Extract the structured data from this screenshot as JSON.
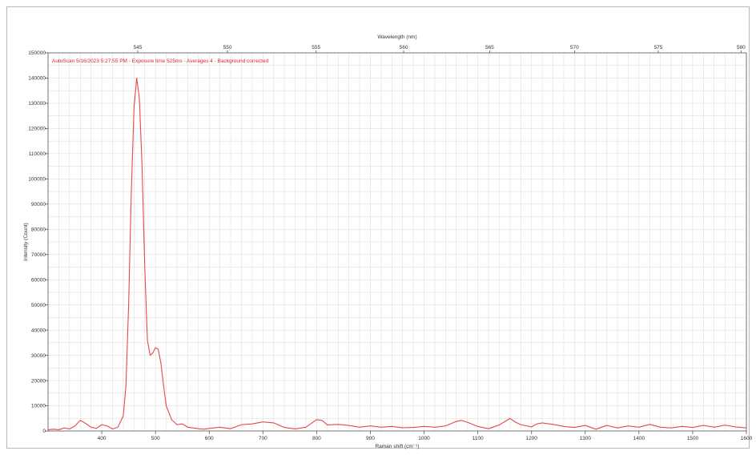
{
  "colors": {
    "series": "#e8474a",
    "grid": "#d8d8d8",
    "axis": "#555555",
    "annotation": "#e02424"
  },
  "annotation_text": "AutoScan 5/16/2023 5:27:55 PM - Exposure time 525ms - Averages 4 - Background corrected",
  "chart_data": {
    "type": "line",
    "title": "",
    "xlabel": "Raman shift (cm⁻¹)",
    "ylabel": "Intensity (Count)",
    "x2label": "Wavelength (nm)",
    "xlim": [
      300,
      1600
    ],
    "ylim": [
      0,
      150000
    ],
    "x_ticks": [
      400,
      500,
      600,
      700,
      800,
      900,
      1000,
      1100,
      1200,
      1300,
      1400,
      1500,
      1600
    ],
    "y_ticks": [
      0,
      10000,
      20000,
      30000,
      40000,
      50000,
      60000,
      70000,
      80000,
      90000,
      100000,
      110000,
      120000,
      130000,
      140000,
      150000
    ],
    "x2_ticks": [
      {
        "label": "545",
        "x": 467
      },
      {
        "label": "550",
        "x": 634
      },
      {
        "label": "555",
        "x": 799
      },
      {
        "label": "560",
        "x": 962
      },
      {
        "label": "565",
        "x": 1122
      },
      {
        "label": "570",
        "x": 1280
      },
      {
        "label": "575",
        "x": 1436
      },
      {
        "label": "580",
        "x": 1590
      }
    ],
    "grid": true,
    "series": [
      {
        "color": "#e8474a",
        "x": [
          300,
          310,
          320,
          330,
          340,
          350,
          360,
          370,
          380,
          390,
          400,
          410,
          420,
          430,
          440,
          445,
          450,
          455,
          460,
          465,
          470,
          475,
          480,
          485,
          490,
          495,
          500,
          505,
          510,
          515,
          520,
          530,
          540,
          550,
          560,
          570,
          580,
          590,
          600,
          620,
          640,
          660,
          680,
          700,
          720,
          740,
          760,
          780,
          800,
          810,
          820,
          840,
          860,
          880,
          900,
          920,
          940,
          960,
          980,
          1000,
          1020,
          1040,
          1060,
          1070,
          1080,
          1100,
          1120,
          1140,
          1160,
          1170,
          1180,
          1200,
          1210,
          1220,
          1240,
          1260,
          1280,
          1300,
          1320,
          1340,
          1360,
          1380,
          1400,
          1420,
          1440,
          1460,
          1480,
          1500,
          1520,
          1540,
          1560,
          1580,
          1600
        ],
        "y": [
          500,
          700,
          500,
          1200,
          800,
          2000,
          4200,
          3000,
          1500,
          1000,
          2500,
          2000,
          800,
          1500,
          6000,
          18000,
          50000,
          95000,
          128000,
          140000,
          132000,
          105000,
          65000,
          36000,
          30000,
          31000,
          33000,
          32500,
          27000,
          18000,
          10000,
          4500,
          2500,
          2800,
          1500,
          1200,
          900,
          700,
          1000,
          1500,
          900,
          2500,
          2800,
          3600,
          3200,
          1400,
          800,
          1500,
          4500,
          4200,
          2400,
          2600,
          2200,
          1500,
          2000,
          1500,
          1800,
          1300,
          1400,
          1800,
          1500,
          2000,
          3800,
          4200,
          3500,
          1800,
          900,
          2400,
          5000,
          3500,
          2500,
          1600,
          2800,
          3200,
          2600,
          1800,
          1400,
          2200,
          700,
          2200,
          1200,
          2000,
          1500,
          2600,
          1500,
          1200,
          1800,
          1400,
          2200,
          1500,
          2300,
          1600,
          1200
        ]
      }
    ]
  }
}
